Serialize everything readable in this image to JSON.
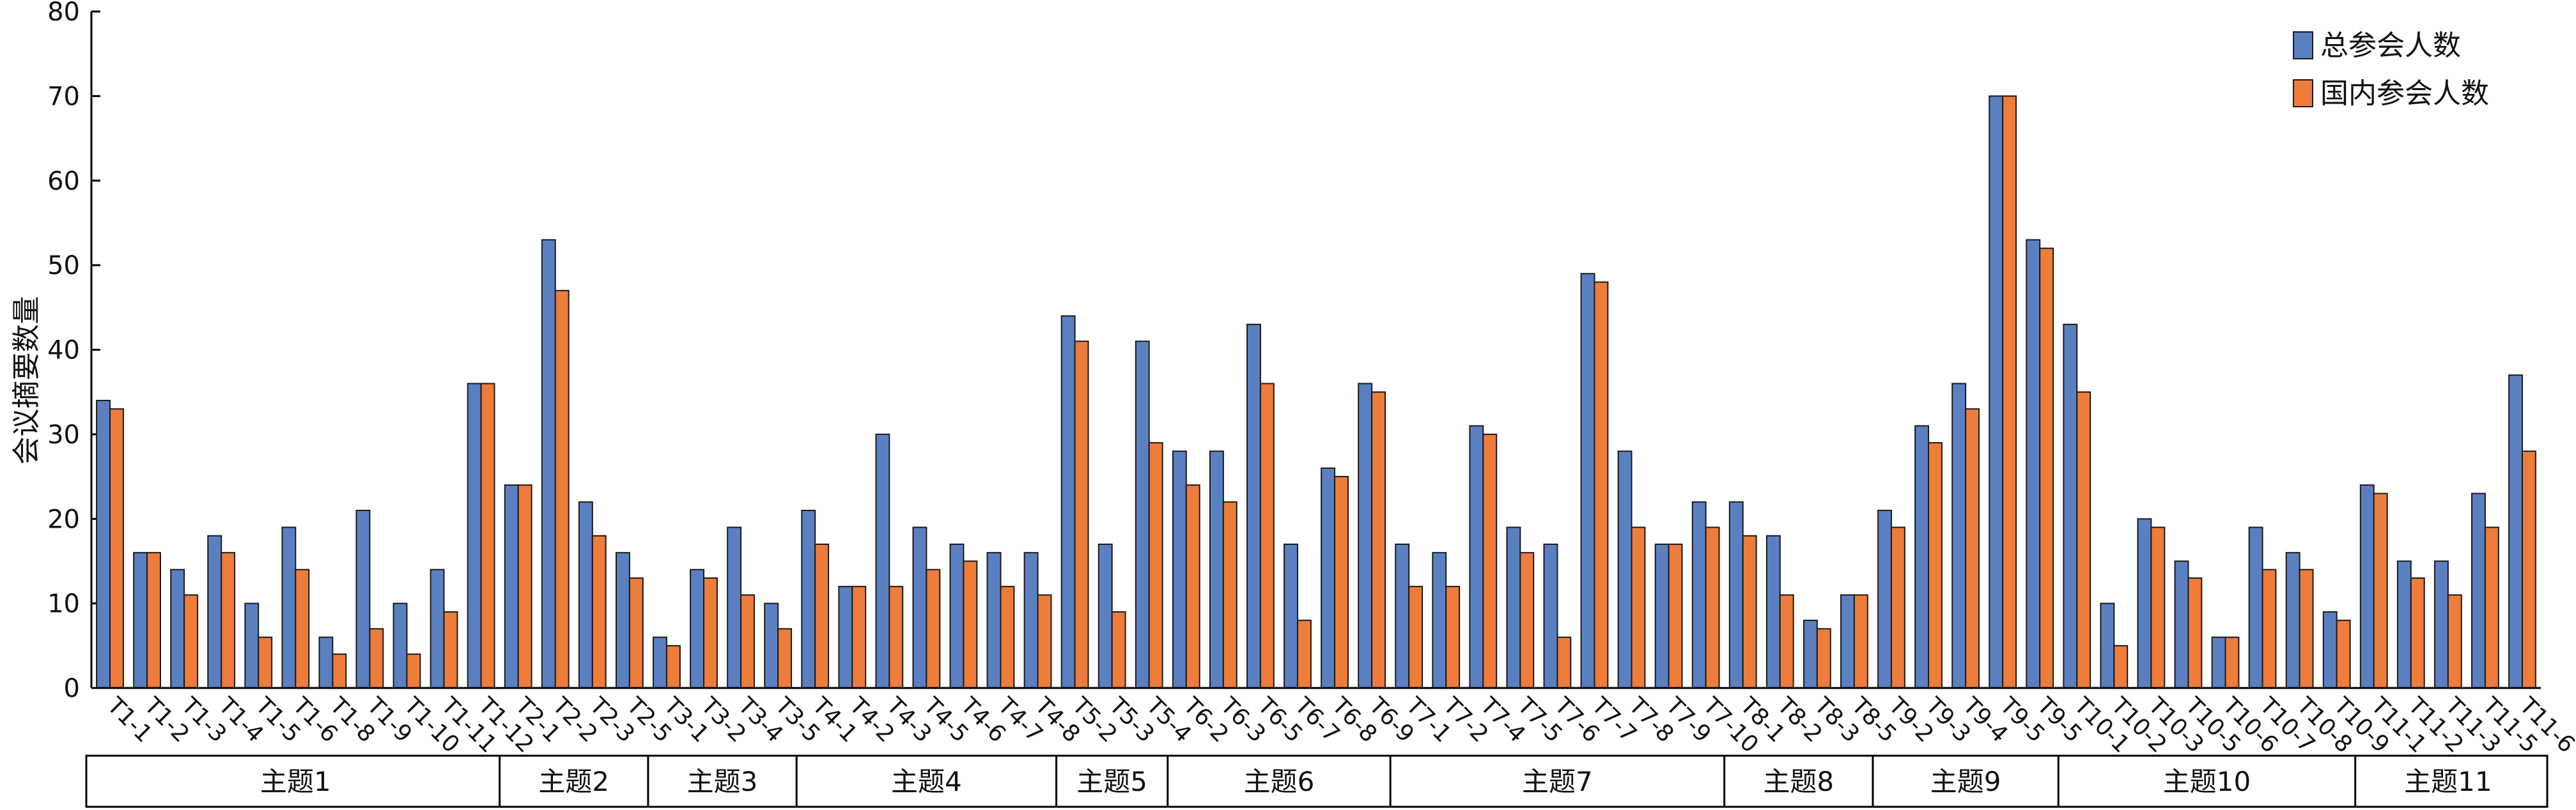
{
  "chart_data": {
    "type": "bar",
    "ylabel": "会议摘要数量",
    "ylim": [
      0,
      80
    ],
    "yticks": [
      0,
      10,
      20,
      30,
      40,
      50,
      60,
      70,
      80
    ],
    "grid": false,
    "legend_position": "top-right",
    "colors": {
      "total": "#5b80c2",
      "domestic": "#ee7c3b"
    },
    "categories": [
      "T1-1",
      "T1-2",
      "T1-3",
      "T1-4",
      "T1-5",
      "T1-6",
      "T1-8",
      "T1-9",
      "T1-10",
      "T1-11",
      "T1-12",
      "T2-1",
      "T2-2",
      "T2-3",
      "T2-5",
      "T3-1",
      "T3-2",
      "T3-4",
      "T3-5",
      "T4-1",
      "T4-2",
      "T4-3",
      "T4-5",
      "T4-6",
      "T4-7",
      "T4-8",
      "T5-2",
      "T5-3",
      "T5-4",
      "T6-2",
      "T6-3",
      "T6-5",
      "T6-7",
      "T6-8",
      "T6-9",
      "T7-1",
      "T7-2",
      "T7-4",
      "T7-5",
      "T7-6",
      "T7-7",
      "T7-8",
      "T7-9",
      "T7-10",
      "T8-1",
      "T8-2",
      "T8-3",
      "T8-5",
      "T9-2",
      "T9-3",
      "T9-4",
      "T9-5",
      "T9-5",
      "T10-1",
      "T10-2",
      "T10-3",
      "T10-5",
      "T10-6",
      "T10-7",
      "T10-8",
      "T10-9",
      "T11-1",
      "T11-2",
      "T11-3",
      "T11-5",
      "T11-6"
    ],
    "series": [
      {
        "name": "总参会人数",
        "values": [
          34,
          16,
          14,
          18,
          10,
          19,
          6,
          21,
          10,
          14,
          36,
          24,
          53,
          22,
          16,
          6,
          14,
          19,
          10,
          21,
          12,
          30,
          19,
          17,
          16,
          16,
          44,
          17,
          41,
          28,
          28,
          43,
          17,
          26,
          36,
          17,
          16,
          31,
          19,
          17,
          49,
          28,
          17,
          22,
          22,
          18,
          8,
          11,
          21,
          31,
          36,
          70,
          53,
          43,
          10,
          20,
          15,
          6,
          19,
          16,
          9,
          24,
          15,
          15,
          23,
          37
        ]
      },
      {
        "name": "国内参会人数",
        "values": [
          33,
          16,
          11,
          16,
          6,
          14,
          4,
          7,
          4,
          9,
          36,
          24,
          47,
          18,
          13,
          5,
          13,
          11,
          7,
          17,
          12,
          12,
          14,
          15,
          12,
          11,
          41,
          9,
          29,
          24,
          22,
          36,
          8,
          25,
          35,
          12,
          12,
          30,
          16,
          6,
          48,
          19,
          17,
          19,
          18,
          11,
          7,
          11,
          19,
          29,
          33,
          70,
          52,
          35,
          5,
          19,
          13,
          6,
          14,
          14,
          8,
          23,
          13,
          11,
          19,
          28
        ]
      }
    ],
    "groups": [
      {
        "label": "主题1",
        "count": 11
      },
      {
        "label": "主题2",
        "count": 4
      },
      {
        "label": "主题3",
        "count": 4
      },
      {
        "label": "主题4",
        "count": 7
      },
      {
        "label": "主题5",
        "count": 3
      },
      {
        "label": "主题6",
        "count": 6
      },
      {
        "label": "主题7",
        "count": 9
      },
      {
        "label": "主题8",
        "count": 4
      },
      {
        "label": "主题9",
        "count": 5
      },
      {
        "label": "主题10",
        "count": 8
      },
      {
        "label": "主题11",
        "count": 5
      }
    ]
  }
}
